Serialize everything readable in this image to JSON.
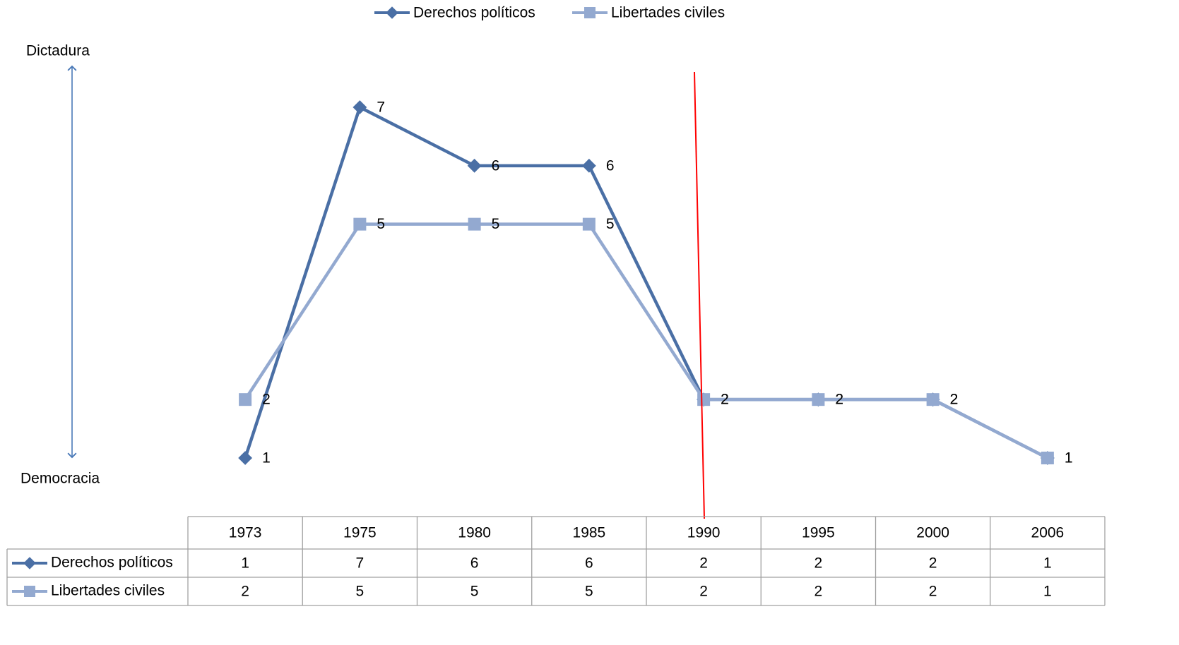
{
  "chart_data": {
    "type": "line",
    "y_label_top": "Dictadura",
    "y_label_bottom": "Democracia",
    "categories": [
      "1973",
      "1975",
      "1980",
      "1985",
      "1990",
      "1995",
      "2000",
      "2006"
    ],
    "series": [
      {
        "name": "Derechos políticos",
        "color": "#4a6fa5",
        "marker": "diamond",
        "values": [
          1,
          7,
          6,
          6,
          2,
          2,
          2,
          1
        ]
      },
      {
        "name": "Libertades civiles",
        "color": "#93a9d0",
        "marker": "square",
        "values": [
          2,
          5,
          5,
          5,
          2,
          2,
          2,
          1
        ]
      }
    ],
    "data_table": true
  }
}
